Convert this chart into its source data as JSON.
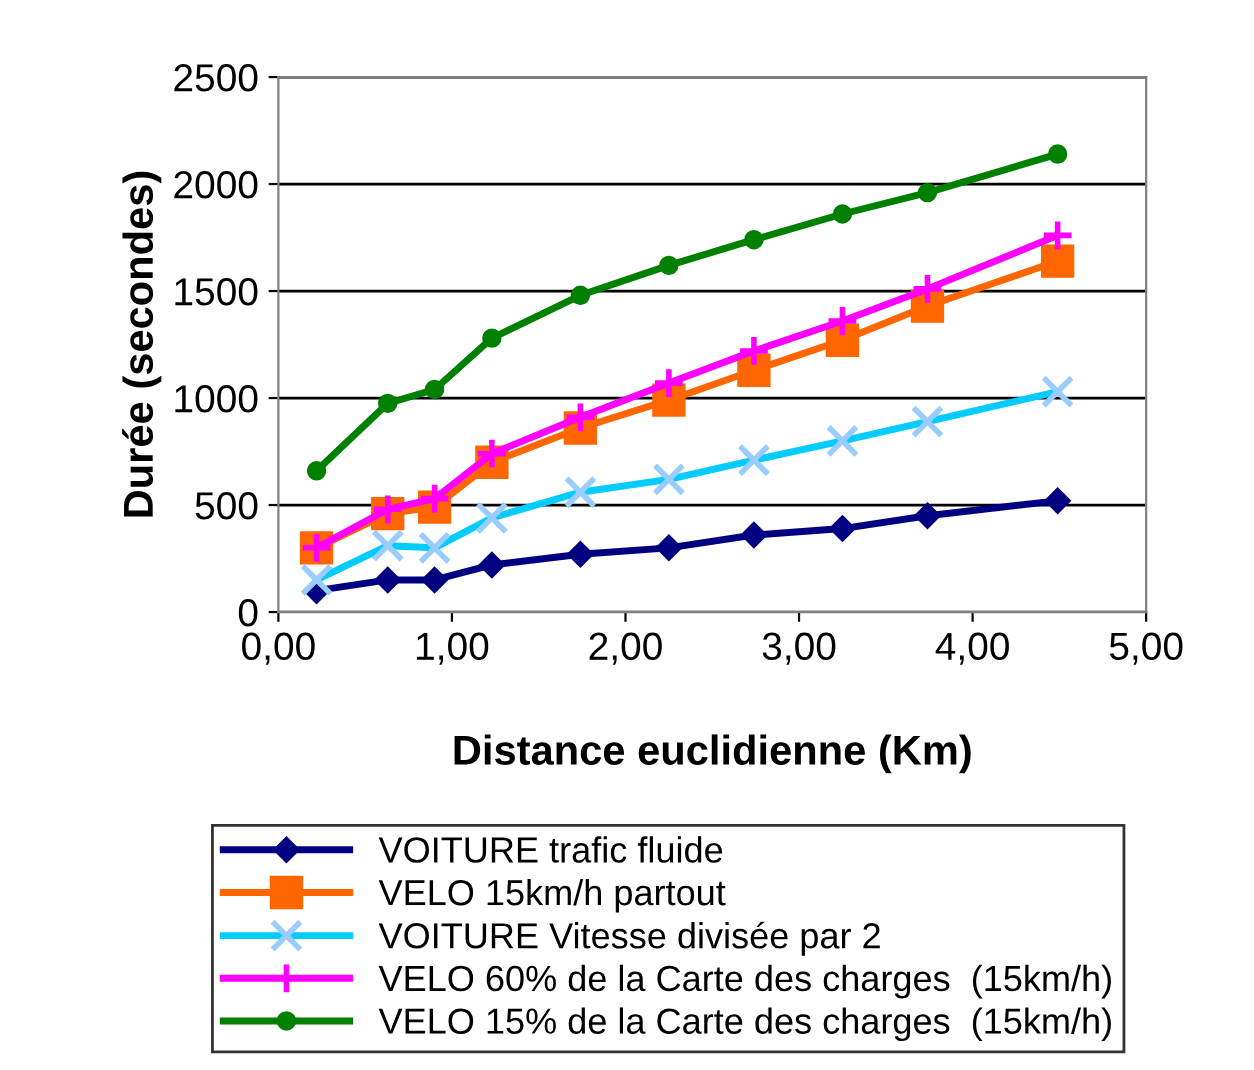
{
  "chart_data": {
    "type": "line",
    "xlabel": "Distance euclidienne (Km)",
    "ylabel": "Durée (secondes)",
    "x": [
      0.22,
      0.63,
      0.9,
      1.23,
      1.74,
      2.25,
      2.74,
      3.25,
      3.74,
      4.49
    ],
    "xlim": [
      0,
      5
    ],
    "xticks": [
      {
        "value": 0,
        "label": "0,00"
      },
      {
        "value": 1,
        "label": "1,00"
      },
      {
        "value": 2,
        "label": "2,00"
      },
      {
        "value": 3,
        "label": "3,00"
      },
      {
        "value": 4,
        "label": "4,00"
      },
      {
        "value": 5,
        "label": "5,00"
      }
    ],
    "ylim": [
      0,
      2500
    ],
    "yticks": [
      0,
      500,
      1000,
      1500,
      2000,
      2500
    ],
    "grid": "y",
    "legend": "bottom",
    "series": [
      {
        "name": "VOITURE trafic fluide",
        "color": "#000080",
        "marker": "diamond",
        "values": [
          100,
          150,
          150,
          220,
          270,
          300,
          360,
          390,
          450,
          520
        ]
      },
      {
        "name": "VELO 15km/h partout",
        "color": "#ff6600",
        "marker": "square",
        "values": [
          300,
          460,
          490,
          700,
          860,
          990,
          1130,
          1270,
          1430,
          1640
        ]
      },
      {
        "name": "VOITURE Vitesse divisée par 2",
        "color": "#00ccff",
        "marker": "cross",
        "values": [
          150,
          310,
          300,
          440,
          560,
          620,
          710,
          800,
          890,
          1030
        ]
      },
      {
        "name": "VELO 60% de la Carte des charges  (15km/h)",
        "color": "#ff00ff",
        "marker": "plus",
        "values": [
          300,
          480,
          530,
          740,
          910,
          1070,
          1220,
          1360,
          1510,
          1760
        ]
      },
      {
        "name": "VELO 15% de la Carte des charges  (15km/h)",
        "color": "#008000",
        "marker": "circle",
        "values": [
          660,
          975,
          1040,
          1280,
          1480,
          1620,
          1740,
          1860,
          1960,
          2140
        ]
      }
    ]
  }
}
